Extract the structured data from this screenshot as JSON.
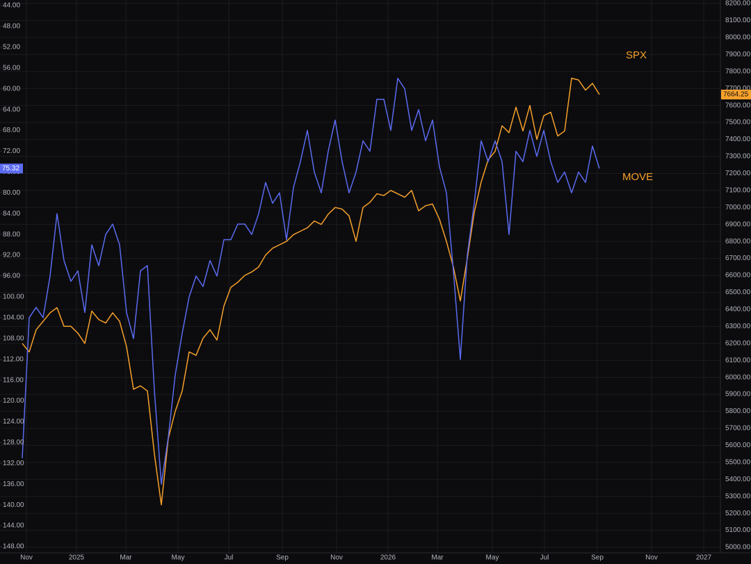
{
  "chart_data": {
    "type": "line",
    "xlim": [
      0,
      100.4
    ],
    "xticks": [
      {
        "value": 0.6,
        "label": "Nov"
      },
      {
        "value": 7.8,
        "label": "2025"
      },
      {
        "value": 14.9,
        "label": "Mar"
      },
      {
        "value": 22.4,
        "label": "May"
      },
      {
        "value": 29.7,
        "label": "Jul"
      },
      {
        "value": 37.4,
        "label": "Sep"
      },
      {
        "value": 45.2,
        "label": "Nov"
      },
      {
        "value": 52.6,
        "label": "2026"
      },
      {
        "value": 59.7,
        "label": "Mar"
      },
      {
        "value": 67.6,
        "label": "May"
      },
      {
        "value": 75.1,
        "label": "Jul"
      },
      {
        "value": 82.7,
        "label": "Sep"
      },
      {
        "value": 90.5,
        "label": "Nov"
      },
      {
        "value": 98,
        "label": "2027"
      }
    ],
    "ylim": [
      44,
      148
    ],
    "y_inverted": true,
    "yticks": [
      {
        "value": 44,
        "label": "44.00"
      },
      {
        "value": 48,
        "label": "48.00"
      },
      {
        "value": 52,
        "label": "52.00"
      },
      {
        "value": 56,
        "label": "56.00"
      },
      {
        "value": 60,
        "label": "60.00"
      },
      {
        "value": 64,
        "label": "64.00"
      },
      {
        "value": 68,
        "label": "68.00"
      },
      {
        "value": 72,
        "label": "72.00"
      },
      {
        "value": 76,
        "label": "76.00"
      },
      {
        "value": 80,
        "label": "80.00"
      },
      {
        "value": 84,
        "label": "84.00"
      },
      {
        "value": 88,
        "label": "88.00"
      },
      {
        "value": 92,
        "label": "92.00"
      },
      {
        "value": 96,
        "label": "96.00"
      },
      {
        "value": 100,
        "label": "100.00"
      },
      {
        "value": 104,
        "label": "104.00"
      },
      {
        "value": 108,
        "label": "108.00"
      },
      {
        "value": 112,
        "label": "112.00"
      },
      {
        "value": 116,
        "label": "116.00"
      },
      {
        "value": 120,
        "label": "120.00"
      },
      {
        "value": 124,
        "label": "124.00"
      },
      {
        "value": 128,
        "label": "128.00"
      },
      {
        "value": 132,
        "label": "132.00"
      },
      {
        "value": 136,
        "label": "136.00"
      },
      {
        "value": 140,
        "label": "140.00"
      },
      {
        "value": 144,
        "label": "144.00"
      },
      {
        "value": 148,
        "label": "148.00"
      }
    ],
    "y2lim": [
      5000,
      8200
    ],
    "y2ticks": [
      {
        "value": 5000,
        "label": "5000.00"
      },
      {
        "value": 5100,
        "label": "5100.00"
      },
      {
        "value": 5200,
        "label": "5200.00"
      },
      {
        "value": 5300,
        "label": "5300.00"
      },
      {
        "value": 5400,
        "label": "5400.00"
      },
      {
        "value": 5500,
        "label": "5500.00"
      },
      {
        "value": 5600,
        "label": "5600.00"
      },
      {
        "value": 5700,
        "label": "5700.00"
      },
      {
        "value": 5800,
        "label": "5800.00"
      },
      {
        "value": 5900,
        "label": "5900.00"
      },
      {
        "value": 6000,
        "label": "6000.00"
      },
      {
        "value": 6100,
        "label": "6100.00"
      },
      {
        "value": 6200,
        "label": "6200.00"
      },
      {
        "value": 6300,
        "label": "6300.00"
      },
      {
        "value": 6400,
        "label": "6400.00"
      },
      {
        "value": 6500,
        "label": "6500.00"
      },
      {
        "value": 6600,
        "label": "6600.00"
      },
      {
        "value": 6700,
        "label": "6700.00"
      },
      {
        "value": 6800,
        "label": "6800.00"
      },
      {
        "value": 6900,
        "label": "6900.00"
      },
      {
        "value": 7000,
        "label": "7000.00"
      },
      {
        "value": 7100,
        "label": "7100.00"
      },
      {
        "value": 7200,
        "label": "7200.00"
      },
      {
        "value": 7300,
        "label": "7300.00"
      },
      {
        "value": 7400,
        "label": "7400.00"
      },
      {
        "value": 7500,
        "label": "7500.00"
      },
      {
        "value": 7600,
        "label": "7600.00"
      },
      {
        "value": 7700,
        "label": "7700.00"
      },
      {
        "value": 7800,
        "label": "7800.00"
      },
      {
        "value": 7900,
        "label": "7900.00"
      },
      {
        "value": 8000,
        "label": "8000.00"
      },
      {
        "value": 8100,
        "label": "8100.00"
      },
      {
        "value": 8200,
        "label": "8200.00"
      }
    ],
    "grid": true,
    "series": [
      {
        "name": "SPX",
        "color": "#f7a12b",
        "axis": "y2",
        "values": [
          6200,
          6150,
          6280,
          6330,
          6380,
          6410,
          6300,
          6300,
          6260,
          6200,
          6390,
          6340,
          6320,
          6380,
          6330,
          6180,
          5930,
          5950,
          5920,
          5550,
          5250,
          5640,
          5800,
          5920,
          6150,
          6130,
          6230,
          6280,
          6220,
          6420,
          6530,
          6560,
          6600,
          6620,
          6650,
          6720,
          6760,
          6780,
          6800,
          6840,
          6860,
          6880,
          6920,
          6900,
          6960,
          7000,
          6990,
          6950,
          6800,
          7000,
          7030,
          7080,
          7070,
          7100,
          7080,
          7060,
          7100,
          6980,
          7010,
          7020,
          6930,
          6800,
          6650,
          6450,
          6700,
          6970,
          7150,
          7280,
          7330,
          7480,
          7440,
          7590,
          7450,
          7600,
          7400,
          7540,
          7560,
          7420,
          7450,
          7760,
          7750,
          7690,
          7730,
          7664.25
        ]
      },
      {
        "name": "MOVE",
        "color": "#5b6bf0",
        "values": [
          131,
          104,
          102,
          104,
          96,
          84,
          93,
          97,
          95,
          103,
          90,
          94,
          88,
          86,
          90,
          103,
          108,
          95,
          94,
          118,
          136,
          127,
          115,
          107,
          100,
          96,
          98,
          93,
          96,
          89,
          89,
          86,
          86,
          88,
          84,
          78,
          82,
          80,
          89,
          79,
          74,
          68,
          76,
          80,
          72,
          66,
          74,
          80,
          76,
          70,
          72,
          62,
          62,
          68,
          58,
          60,
          68,
          64,
          70,
          66,
          75,
          80,
          95,
          112,
          92,
          82,
          70,
          74,
          70,
          74,
          88,
          72,
          74,
          68,
          73,
          68,
          74,
          78,
          76,
          80,
          76,
          78,
          71,
          75.32
        ]
      }
    ]
  }
}
